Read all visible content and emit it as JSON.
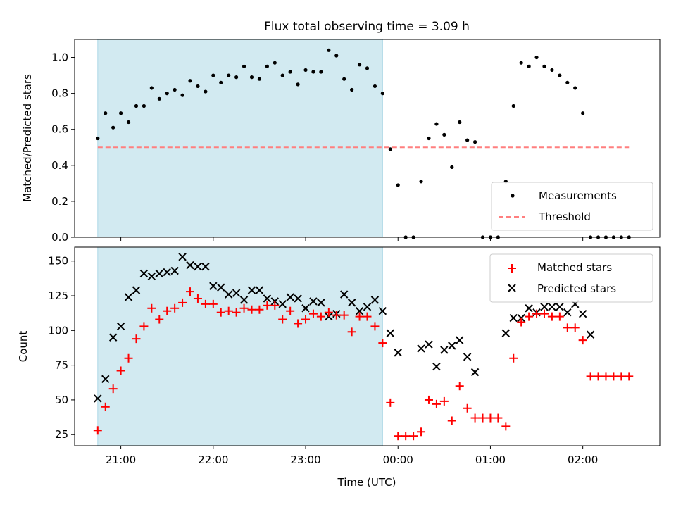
{
  "chart_data": [
    {
      "type": "scatter",
      "panel": "top",
      "title": "Flux total observing time = 3.09 h",
      "ylabel": "Matched/Predicted stars",
      "ylim": [
        0,
        1.1
      ],
      "yticks": [
        0.0,
        0.2,
        0.4,
        0.6,
        0.8,
        1.0
      ],
      "ytick_labels": [
        "0.0",
        "0.2",
        "0.4",
        "0.6",
        "0.8",
        "1.0"
      ],
      "legend": {
        "placement": "lower-right",
        "entries": [
          "Measurements",
          "Threshold"
        ]
      },
      "shaded_interval": [
        "20:45",
        "23:50"
      ],
      "shade_color": "#add8e6",
      "series": [
        {
          "name": "Measurements",
          "kind": "points",
          "color": "#000000",
          "points": [
            [
              "20:45",
              0.55
            ],
            [
              "20:50",
              0.69
            ],
            [
              "20:55",
              0.61
            ],
            [
              "21:00",
              0.69
            ],
            [
              "21:05",
              0.64
            ],
            [
              "21:10",
              0.73
            ],
            [
              "21:15",
              0.73
            ],
            [
              "21:20",
              0.83
            ],
            [
              "21:25",
              0.77
            ],
            [
              "21:30",
              0.8
            ],
            [
              "21:35",
              0.82
            ],
            [
              "21:40",
              0.79
            ],
            [
              "21:45",
              0.87
            ],
            [
              "21:50",
              0.84
            ],
            [
              "21:55",
              0.81
            ],
            [
              "22:00",
              0.9
            ],
            [
              "22:05",
              0.86
            ],
            [
              "22:10",
              0.9
            ],
            [
              "22:15",
              0.89
            ],
            [
              "22:20",
              0.95
            ],
            [
              "22:25",
              0.89
            ],
            [
              "22:30",
              0.88
            ],
            [
              "22:35",
              0.95
            ],
            [
              "22:40",
              0.97
            ],
            [
              "22:45",
              0.9
            ],
            [
              "22:50",
              0.92
            ],
            [
              "22:55",
              0.85
            ],
            [
              "23:00",
              0.93
            ],
            [
              "23:05",
              0.92
            ],
            [
              "23:10",
              0.92
            ],
            [
              "23:15",
              1.04
            ],
            [
              "23:20",
              1.01
            ],
            [
              "23:25",
              0.88
            ],
            [
              "23:30",
              0.82
            ],
            [
              "23:35",
              0.96
            ],
            [
              "23:40",
              0.94
            ],
            [
              "23:45",
              0.84
            ],
            [
              "23:50",
              0.8
            ],
            [
              "23:55",
              0.49
            ],
            [
              "24:00",
              0.29
            ],
            [
              "24:05",
              0.0
            ],
            [
              "24:10",
              0.0
            ],
            [
              "24:15",
              0.31
            ],
            [
              "24:20",
              0.55
            ],
            [
              "24:25",
              0.63
            ],
            [
              "24:30",
              0.57
            ],
            [
              "24:35",
              0.39
            ],
            [
              "24:40",
              0.64
            ],
            [
              "24:45",
              0.54
            ],
            [
              "24:50",
              0.53
            ],
            [
              "24:55",
              0.0
            ],
            [
              "25:00",
              0.0
            ],
            [
              "25:05",
              0.0
            ],
            [
              "25:10",
              0.31
            ],
            [
              "25:15",
              0.73
            ],
            [
              "25:20",
              0.97
            ],
            [
              "25:25",
              0.95
            ],
            [
              "25:30",
              1.0
            ],
            [
              "25:35",
              0.95
            ],
            [
              "25:40",
              0.93
            ],
            [
              "25:45",
              0.9
            ],
            [
              "25:50",
              0.86
            ],
            [
              "25:55",
              0.83
            ],
            [
              "26:00",
              0.69
            ],
            [
              "26:05",
              0.0
            ],
            [
              "26:10",
              0.0
            ],
            [
              "26:15",
              0.0
            ],
            [
              "26:20",
              0.0
            ],
            [
              "26:25",
              0.0
            ],
            [
              "26:30",
              0.0
            ]
          ]
        },
        {
          "name": "Threshold",
          "kind": "dashed-line",
          "color": "#ff7f7f",
          "points": [
            [
              "20:45",
              0.5
            ],
            [
              "26:30",
              0.5
            ]
          ]
        }
      ]
    },
    {
      "type": "scatter",
      "panel": "bottom",
      "xlabel": "Time (UTC)",
      "ylabel": "Count",
      "ylim": [
        17,
        160
      ],
      "yticks": [
        25,
        50,
        75,
        100,
        125,
        150
      ],
      "ytick_labels": [
        "25",
        "50",
        "75",
        "100",
        "125",
        "150"
      ],
      "xlim": [
        "20:30",
        "26:50"
      ],
      "xticks": [
        "21:00",
        "22:00",
        "23:00",
        "24:00",
        "25:00",
        "26:00"
      ],
      "xtick_labels": [
        "21:00",
        "22:00",
        "23:00",
        "00:00",
        "01:00",
        "02:00"
      ],
      "legend": {
        "placement": "upper-right",
        "entries": [
          "Matched stars",
          "Predicted stars"
        ]
      },
      "shaded_interval": [
        "20:45",
        "23:50"
      ],
      "series": [
        {
          "name": "Matched stars",
          "marker": "plus",
          "color": "#ff0000",
          "points": [
            [
              "20:45",
              28
            ],
            [
              "20:50",
              45
            ],
            [
              "20:55",
              58
            ],
            [
              "21:00",
              71
            ],
            [
              "21:05",
              80
            ],
            [
              "21:10",
              94
            ],
            [
              "21:15",
              103
            ],
            [
              "21:20",
              116
            ],
            [
              "21:25",
              108
            ],
            [
              "21:30",
              114
            ],
            [
              "21:35",
              116
            ],
            [
              "21:40",
              120
            ],
            [
              "21:45",
              128
            ],
            [
              "21:50",
              123
            ],
            [
              "21:55",
              119
            ],
            [
              "22:00",
              119
            ],
            [
              "22:05",
              113
            ],
            [
              "22:10",
              114
            ],
            [
              "22:15",
              113
            ],
            [
              "22:20",
              116
            ],
            [
              "22:25",
              115
            ],
            [
              "22:30",
              115
            ],
            [
              "22:35",
              118
            ],
            [
              "22:40",
              118
            ],
            [
              "22:45",
              108
            ],
            [
              "22:50",
              114
            ],
            [
              "22:55",
              105
            ],
            [
              "23:00",
              108
            ],
            [
              "23:05",
              112
            ],
            [
              "23:10",
              110
            ],
            [
              "23:15",
              113
            ],
            [
              "23:20",
              111
            ],
            [
              "23:25",
              111
            ],
            [
              "23:30",
              99
            ],
            [
              "23:35",
              110
            ],
            [
              "23:40",
              110
            ],
            [
              "23:45",
              103
            ],
            [
              "23:50",
              91
            ],
            [
              "23:55",
              48
            ],
            [
              "24:00",
              24
            ],
            [
              "24:05",
              24
            ],
            [
              "24:10",
              24
            ],
            [
              "24:15",
              27
            ],
            [
              "24:20",
              50
            ],
            [
              "24:25",
              47
            ],
            [
              "24:30",
              49
            ],
            [
              "24:35",
              35
            ],
            [
              "24:40",
              60
            ],
            [
              "24:45",
              44
            ],
            [
              "24:50",
              37
            ],
            [
              "24:55",
              37
            ],
            [
              "25:00",
              37
            ],
            [
              "25:05",
              37
            ],
            [
              "25:10",
              31
            ],
            [
              "25:15",
              80
            ],
            [
              "25:20",
              106
            ],
            [
              "25:25",
              110
            ],
            [
              "25:30",
              112
            ],
            [
              "25:35",
              112
            ],
            [
              "25:40",
              110
            ],
            [
              "25:45",
              110
            ],
            [
              "25:50",
              102
            ],
            [
              "25:55",
              102
            ],
            [
              "26:00",
              93
            ],
            [
              "26:05",
              67
            ],
            [
              "26:10",
              67
            ],
            [
              "26:15",
              67
            ],
            [
              "26:20",
              67
            ],
            [
              "26:25",
              67
            ],
            [
              "26:30",
              67
            ]
          ]
        },
        {
          "name": "Predicted stars",
          "marker": "x",
          "color": "#000000",
          "points": [
            [
              "20:45",
              51
            ],
            [
              "20:50",
              65
            ],
            [
              "20:55",
              95
            ],
            [
              "21:00",
              103
            ],
            [
              "21:05",
              124
            ],
            [
              "21:10",
              129
            ],
            [
              "21:15",
              141
            ],
            [
              "21:20",
              139
            ],
            [
              "21:25",
              141
            ],
            [
              "21:30",
              142
            ],
            [
              "21:35",
              143
            ],
            [
              "21:40",
              153
            ],
            [
              "21:45",
              147
            ],
            [
              "21:50",
              146
            ],
            [
              "21:55",
              146
            ],
            [
              "22:00",
              132
            ],
            [
              "22:05",
              131
            ],
            [
              "22:10",
              126
            ],
            [
              "22:15",
              127
            ],
            [
              "22:20",
              122
            ],
            [
              "22:25",
              129
            ],
            [
              "22:30",
              129
            ],
            [
              "22:35",
              123
            ],
            [
              "22:40",
              121
            ],
            [
              "22:45",
              119
            ],
            [
              "22:50",
              124
            ],
            [
              "22:55",
              123
            ],
            [
              "23:00",
              116
            ],
            [
              "23:05",
              121
            ],
            [
              "23:10",
              120
            ],
            [
              "23:15",
              110
            ],
            [
              "23:20",
              112
            ],
            [
              "23:25",
              126
            ],
            [
              "23:30",
              120
            ],
            [
              "23:35",
              114
            ],
            [
              "23:40",
              117
            ],
            [
              "23:45",
              122
            ],
            [
              "23:50",
              114
            ],
            [
              "23:55",
              98
            ],
            [
              "24:00",
              84
            ],
            [
              "24:15",
              87
            ],
            [
              "24:20",
              90
            ],
            [
              "24:25",
              74
            ],
            [
              "24:30",
              86
            ],
            [
              "24:35",
              89
            ],
            [
              "24:40",
              93
            ],
            [
              "24:45",
              81
            ],
            [
              "24:50",
              70
            ],
            [
              "25:10",
              98
            ],
            [
              "25:15",
              109
            ],
            [
              "25:20",
              109
            ],
            [
              "25:25",
              116
            ],
            [
              "25:30",
              113
            ],
            [
              "25:35",
              117
            ],
            [
              "25:40",
              117
            ],
            [
              "25:45",
              117
            ],
            [
              "25:50",
              113
            ],
            [
              "25:55",
              119
            ],
            [
              "26:00",
              112
            ],
            [
              "26:05",
              97
            ]
          ]
        }
      ]
    }
  ]
}
